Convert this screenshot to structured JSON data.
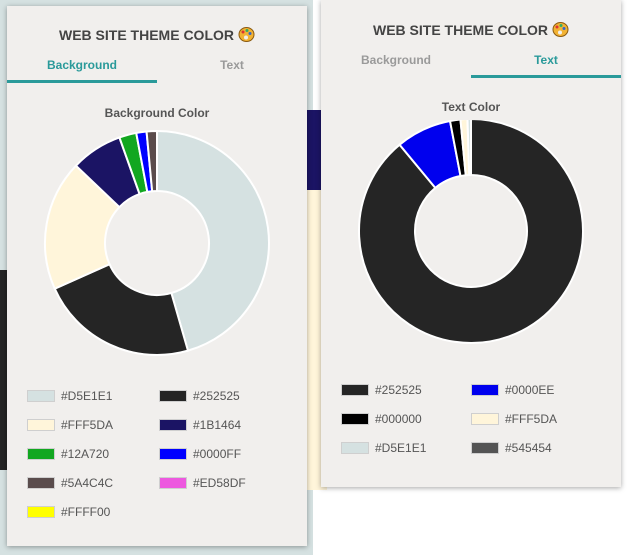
{
  "popups": [
    {
      "title": "WEB SITE THEME COLOR",
      "icon": "palette-icon",
      "tabs": [
        {
          "label": "Background",
          "active": true
        },
        {
          "label": "Text",
          "active": false
        }
      ],
      "chart_data": {
        "type": "pie",
        "style": "donut",
        "title": "Background Color",
        "series": [
          {
            "label": "#D5E1E1",
            "color": "#D5E1E1",
            "value": 46
          },
          {
            "label": "#252525",
            "color": "#252525",
            "value": 23
          },
          {
            "label": "#FFF5DA",
            "color": "#FFF5DA",
            "value": 19
          },
          {
            "label": "#1B1464",
            "color": "#1B1464",
            "value": 7.5
          },
          {
            "label": "#12A720",
            "color": "#12A720",
            "value": 2.5
          },
          {
            "label": "#0000FF",
            "color": "#0000FF",
            "value": 1.5
          },
          {
            "label": "#5A4C4C",
            "color": "#5A4C4C",
            "value": 1.5
          },
          {
            "label": "#ED58DF",
            "color": "#ED58DF",
            "value": 0
          },
          {
            "label": "#FFFF00",
            "color": "#FFFF00",
            "value": 0
          }
        ],
        "legend": "bottom"
      }
    },
    {
      "title": "WEB SITE THEME COLOR",
      "icon": "palette-icon",
      "tabs": [
        {
          "label": "Background",
          "active": false
        },
        {
          "label": "Text",
          "active": true
        }
      ],
      "chart_data": {
        "type": "pie",
        "style": "donut",
        "title": "Text Color",
        "series": [
          {
            "label": "#252525",
            "color": "#252525",
            "value": 89
          },
          {
            "label": "#0000EE",
            "color": "#0000EE",
            "value": 8
          },
          {
            "label": "#000000",
            "color": "#000000",
            "value": 1.5
          },
          {
            "label": "#FFF5DA",
            "color": "#FFF5DA",
            "value": 1
          },
          {
            "label": "#D5E1E1",
            "color": "#D5E1E1",
            "value": 0.5
          },
          {
            "label": "#545454",
            "color": "#545454",
            "value": 0
          }
        ],
        "legend": "bottom"
      }
    }
  ]
}
